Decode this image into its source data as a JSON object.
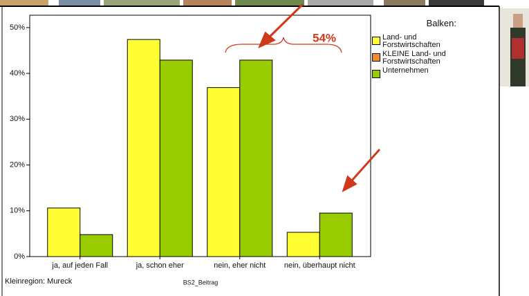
{
  "chart_data": {
    "type": "bar",
    "legend_title": "Balken:",
    "x_label": "BS2_Beitrag",
    "footnote": "Kleinregion: Mureck",
    "annotation": "54%",
    "categories": [
      "ja, auf jeden Fall",
      "ja, schon eher",
      "nein, eher nicht",
      "nein, überhaupt nicht"
    ],
    "series": [
      {
        "name": "Land- und Forstwirtschaften",
        "color": "#ffff33",
        "values": [
          10.6,
          47.4,
          36.9,
          5.3
        ]
      },
      {
        "name": "KLEINE Land- und Forstwirtschaften",
        "color": "#f28c28",
        "values": [
          null,
          null,
          null,
          null
        ]
      },
      {
        "name": "Unternehmen",
        "color": "#99cc00",
        "values": [
          4.8,
          42.9,
          42.9,
          9.5
        ]
      }
    ],
    "ylim": [
      0,
      52.7
    ],
    "yticks": [
      {
        "value": 0,
        "label": "0%"
      },
      {
        "value": 10,
        "label": "10%"
      },
      {
        "value": 20,
        "label": "20%"
      },
      {
        "value": 30,
        "label": "30%"
      },
      {
        "value": 40,
        "label": "40%"
      },
      {
        "value": 50,
        "label": "50%"
      }
    ]
  }
}
